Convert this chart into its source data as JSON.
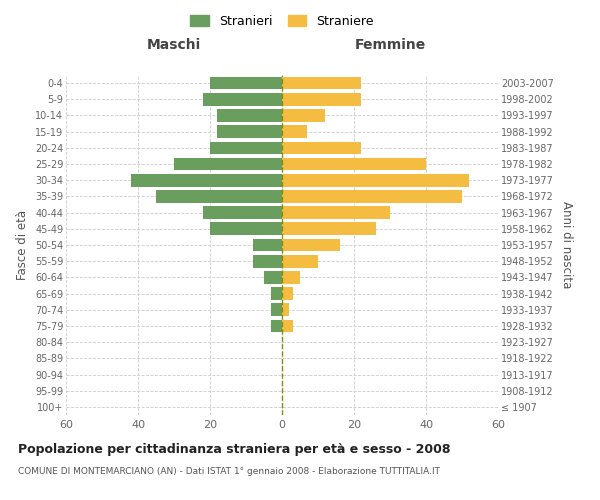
{
  "age_groups": [
    "100+",
    "95-99",
    "90-94",
    "85-89",
    "80-84",
    "75-79",
    "70-74",
    "65-69",
    "60-64",
    "55-59",
    "50-54",
    "45-49",
    "40-44",
    "35-39",
    "30-34",
    "25-29",
    "20-24",
    "15-19",
    "10-14",
    "5-9",
    "0-4"
  ],
  "birth_years": [
    "≤ 1907",
    "1908-1912",
    "1913-1917",
    "1918-1922",
    "1923-1927",
    "1928-1932",
    "1933-1937",
    "1938-1942",
    "1943-1947",
    "1948-1952",
    "1953-1957",
    "1958-1962",
    "1963-1967",
    "1968-1972",
    "1973-1977",
    "1978-1982",
    "1983-1987",
    "1988-1992",
    "1993-1997",
    "1998-2002",
    "2003-2007"
  ],
  "maschi": [
    0,
    0,
    0,
    0,
    0,
    3,
    3,
    3,
    5,
    8,
    8,
    20,
    22,
    35,
    42,
    30,
    20,
    18,
    18,
    22,
    20
  ],
  "femmine": [
    0,
    0,
    0,
    0,
    0,
    3,
    2,
    3,
    5,
    10,
    16,
    26,
    30,
    50,
    52,
    40,
    22,
    7,
    12,
    22,
    22
  ],
  "color_maschi": "#6a9e5e",
  "color_femmine": "#f5bc42",
  "color_center_line": "#8b8b00",
  "xlim": 60,
  "title": "Popolazione per cittadinanza straniera per età e sesso - 2008",
  "subtitle": "COMUNE DI MONTEMARCIANO (AN) - Dati ISTAT 1° gennaio 2008 - Elaborazione TUTTITALIA.IT",
  "ylabel_left": "Fasce di età",
  "ylabel_right": "Anni di nascita",
  "label_maschi": "Stranieri",
  "label_femmine": "Straniere",
  "header_maschi": "Maschi",
  "header_femmine": "Femmine",
  "bg_color": "#ffffff",
  "grid_color": "#cccccc"
}
